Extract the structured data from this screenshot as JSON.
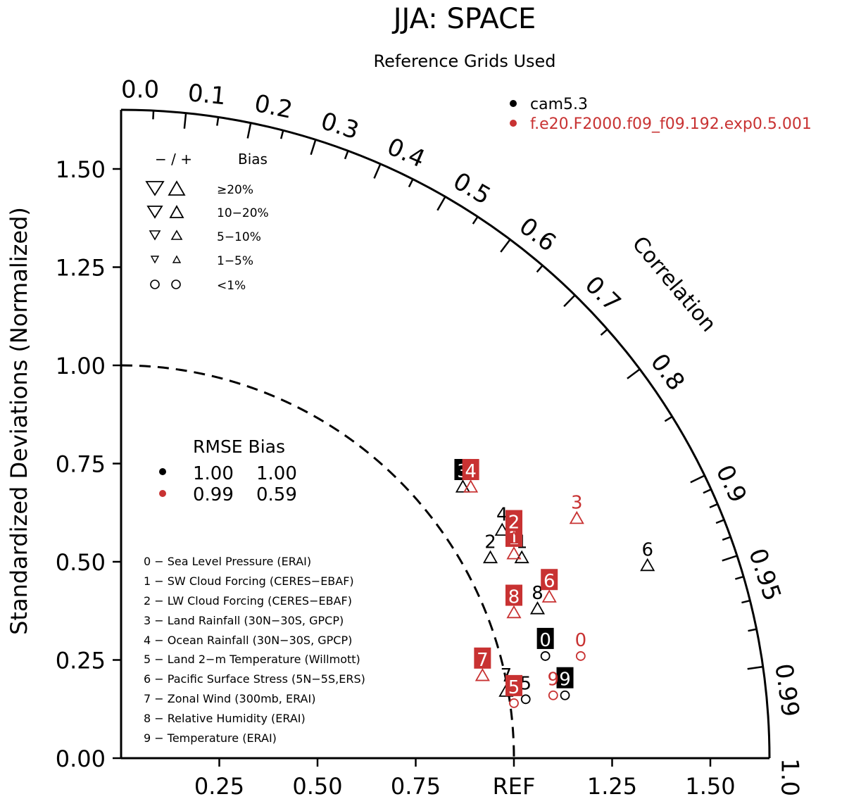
{
  "chart_data": {
    "type": "scatter",
    "subtype": "taylor-diagram",
    "title": "JJA: SPACE",
    "subtitle": "Reference Grids Used",
    "ylabel": "Standardized Deviations (Normalized)",
    "arc_label": "Correlation",
    "ref_label": "REF",
    "std_range": [
      0,
      1.65
    ],
    "y_ticks": [
      "0.00",
      "0.25",
      "0.50",
      "0.75",
      "1.00",
      "1.25",
      "1.50"
    ],
    "y_tick_values": [
      0,
      0.25,
      0.5,
      0.75,
      1.0,
      1.25,
      1.5
    ],
    "x_ticks": [
      "0.25",
      "0.50",
      "0.75",
      "REF",
      "1.25",
      "1.50"
    ],
    "x_tick_values": [
      0.25,
      0.5,
      0.75,
      1.0,
      1.25,
      1.5
    ],
    "corr_labels": [
      "0.0",
      "0.1",
      "0.2",
      "0.3",
      "0.4",
      "0.5",
      "0.6",
      "0.7",
      "0.8",
      "0.9",
      "0.95",
      "0.99",
      "1.0"
    ],
    "corr_label_values": [
      0,
      0.1,
      0.2,
      0.3,
      0.4,
      0.5,
      0.6,
      0.7,
      0.8,
      0.9,
      0.95,
      0.99,
      1.0
    ],
    "corr_minor_ticks": [
      0.05,
      0.15,
      0.25,
      0.35,
      0.45,
      0.55,
      0.65,
      0.75,
      0.85,
      0.91,
      0.92,
      0.93,
      0.94,
      0.96,
      0.97,
      0.98
    ],
    "legend_models": [
      {
        "name": "cam5.3",
        "color": "#000000"
      },
      {
        "name": "f.e20.F2000.f09_f09.192.exp0.5.001",
        "color": "#c83232"
      }
    ],
    "bias_legend": {
      "header_signs": "−  /  +",
      "header_label": "Bias",
      "rows": [
        "≥20%",
        "10−20%",
        "5−10%",
        "1−5%",
        "<1%"
      ]
    },
    "rmse_legend": {
      "header": "RMSE Bias",
      "rows": [
        {
          "rmse": "1.00",
          "bias": "1.00",
          "color": "#000000"
        },
        {
          "rmse": "0.99",
          "bias": "0.59",
          "color": "#c83232"
        }
      ]
    },
    "variables": [
      "0 − Sea Level Pressure (ERAI)",
      "1 − SW Cloud Forcing (CERES−EBAF)",
      "2 − LW Cloud Forcing (CERES−EBAF)",
      "3 − Land Rainfall (30N−30S, GPCP)",
      "4 − Ocean Rainfall (30N−30S, GPCP)",
      "5 − Land 2−m Temperature (Willmott)",
      "6 − Pacific Surface Stress (5N−5S,ERS)",
      "7 − Zonal Wind (300mb, ERAI)",
      "8 − Relative Humidity (ERAI)",
      "9 − Temperature (ERAI)"
    ],
    "series": [
      {
        "name": "cam5.3",
        "color": "#000000",
        "points": [
          {
            "label": "0",
            "x": 1.08,
            "y": 0.26,
            "marker": "circle",
            "boxed": true
          },
          {
            "label": "1",
            "x": 1.02,
            "y": 0.51,
            "marker": "tri-up",
            "boxed": false
          },
          {
            "label": "2",
            "x": 0.94,
            "y": 0.51,
            "marker": "tri-up",
            "boxed": false
          },
          {
            "label": "3",
            "x": 0.87,
            "y": 0.69,
            "marker": "tri-up",
            "boxed": true
          },
          {
            "label": "4",
            "x": 0.97,
            "y": 0.58,
            "marker": "tri-up",
            "boxed": false
          },
          {
            "label": "5",
            "x": 1.03,
            "y": 0.15,
            "marker": "circle",
            "boxed": false
          },
          {
            "label": "6",
            "x": 1.34,
            "y": 0.49,
            "marker": "tri-up",
            "boxed": false
          },
          {
            "label": "7",
            "x": 0.98,
            "y": 0.17,
            "marker": "tri-up",
            "boxed": false
          },
          {
            "label": "8",
            "x": 1.06,
            "y": 0.38,
            "marker": "tri-up",
            "boxed": false
          },
          {
            "label": "9",
            "x": 1.13,
            "y": 0.16,
            "marker": "circle",
            "boxed": true
          }
        ]
      },
      {
        "name": "f.e20.F2000.f09_f09.192.exp0.5.001",
        "color": "#c83232",
        "points": [
          {
            "label": "0",
            "x": 1.17,
            "y": 0.26,
            "marker": "circle",
            "boxed": false
          },
          {
            "label": "1",
            "x": 1.0,
            "y": 0.52,
            "marker": "tri-up",
            "boxed": true
          },
          {
            "label": "2",
            "x": 1.0,
            "y": 0.56,
            "marker": "tri-up",
            "boxed": true
          },
          {
            "label": "3",
            "x": 1.16,
            "y": 0.61,
            "marker": "tri-up",
            "boxed": false
          },
          {
            "label": "4",
            "x": 0.89,
            "y": 0.69,
            "marker": "tri-up",
            "boxed": true
          },
          {
            "label": "5",
            "x": 1.0,
            "y": 0.14,
            "marker": "circle",
            "boxed": true
          },
          {
            "label": "6",
            "x": 1.09,
            "y": 0.41,
            "marker": "tri-up",
            "boxed": true
          },
          {
            "label": "7",
            "x": 0.92,
            "y": 0.21,
            "marker": "tri-up",
            "boxed": true
          },
          {
            "label": "8",
            "x": 1.0,
            "y": 0.37,
            "marker": "tri-up",
            "boxed": true
          },
          {
            "label": "9",
            "x": 1.1,
            "y": 0.16,
            "marker": "circle",
            "boxed": false
          }
        ]
      }
    ]
  }
}
